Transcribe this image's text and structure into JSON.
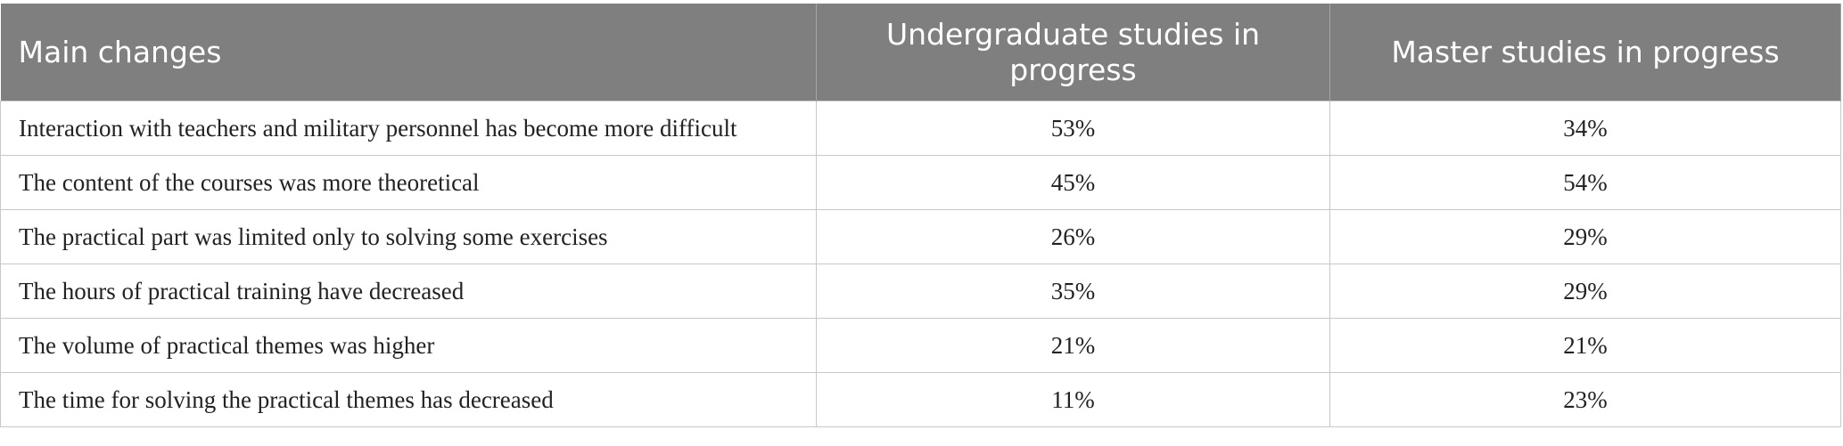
{
  "table": {
    "header": [
      "Main changes",
      "Undergraduate studies in progress",
      "Master studies in progress"
    ],
    "rows": [
      [
        "Interaction with teachers and military personnel has become more difficult",
        "53%",
        "34%"
      ],
      [
        "The content of the courses was more theoretical",
        "45%",
        "54%"
      ],
      [
        "The practical part was limited only to solving some exercises",
        "26%",
        "29%"
      ],
      [
        "The hours of practical training have decreased",
        "35%",
        "29%"
      ],
      [
        "The volume of practical themes was higher",
        "21%",
        "21%"
      ],
      [
        "The time for solving the practical themes has decreased",
        "11%",
        "23%"
      ]
    ]
  }
}
